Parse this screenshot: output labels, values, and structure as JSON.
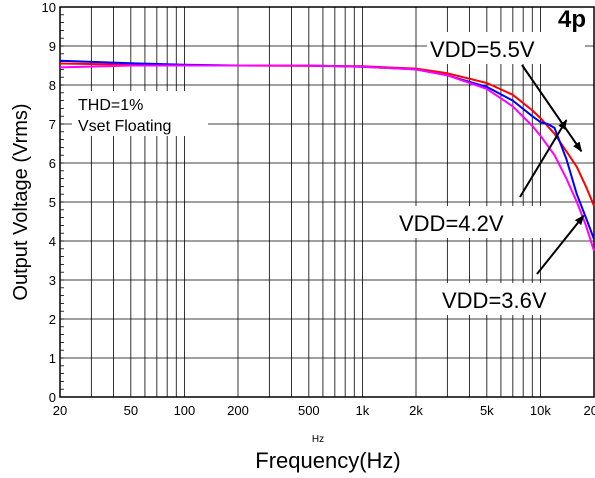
{
  "chart_data": {
    "type": "line",
    "xscale": "log",
    "xlim": [
      20,
      20000
    ],
    "ylim": [
      0,
      10
    ],
    "xticks": [
      20,
      50,
      100,
      200,
      500,
      1000,
      2000,
      5000,
      10000,
      20000
    ],
    "xtick_labels": [
      "20",
      "50",
      "100",
      "200",
      "500",
      "1k",
      "2k",
      "5k",
      "10k",
      "20k"
    ],
    "yticks": [
      0,
      1,
      2,
      3,
      4,
      5,
      6,
      7,
      8,
      9,
      10
    ],
    "ytick_labels": [
      "0",
      "1",
      "2",
      "3",
      "4",
      "5",
      "6",
      "7",
      "8",
      "9",
      "10"
    ],
    "xunit": "Hz",
    "xlabel": "Frequency(Hz)",
    "ylabel": "Output Voltage (Vrms)",
    "grid": true,
    "logo_text": "4p",
    "annotations": [
      "THD=1%",
      "Vset Floating"
    ],
    "series": [
      {
        "name": "VDD=5.5V",
        "color": "#ff0000",
        "x": [
          20,
          50,
          100,
          200,
          500,
          1000,
          2000,
          3000,
          5000,
          7000,
          9000,
          10000,
          12000,
          14000,
          16000,
          18000,
          20000
        ],
        "y": [
          8.55,
          8.52,
          8.5,
          8.5,
          8.49,
          8.48,
          8.42,
          8.3,
          8.05,
          7.75,
          7.35,
          7.15,
          6.75,
          6.3,
          5.9,
          5.4,
          4.9
        ]
      },
      {
        "name": "VDD=4.2V",
        "color": "#0000ff",
        "x": [
          20,
          50,
          100,
          200,
          500,
          1000,
          2000,
          3000,
          5000,
          7000,
          9000,
          10000,
          11000,
          12000,
          14000,
          16000,
          18000,
          20000
        ],
        "y": [
          8.62,
          8.56,
          8.52,
          8.5,
          8.5,
          8.47,
          8.4,
          8.25,
          7.95,
          7.6,
          7.2,
          7.05,
          7.0,
          6.9,
          6.1,
          5.2,
          4.6,
          4.05
        ]
      },
      {
        "name": "VDD=3.6V",
        "color": "#ff00ff",
        "x": [
          20,
          50,
          100,
          200,
          500,
          1000,
          2000,
          3000,
          5000,
          7000,
          9000,
          10000,
          12000,
          14000,
          16000,
          18000,
          20000
        ],
        "y": [
          8.45,
          8.5,
          8.5,
          8.5,
          8.5,
          8.47,
          8.4,
          8.25,
          7.9,
          7.45,
          6.95,
          6.7,
          6.2,
          5.6,
          5.0,
          4.4,
          3.75
        ]
      }
    ],
    "labels": [
      {
        "text": "VDD=5.5V",
        "series": 0,
        "arrow_x": 17000,
        "arrow_y": 6.3
      },
      {
        "text": "VDD=4.2V",
        "series": 1,
        "arrow_x": 14000,
        "arrow_y": 7.1
      },
      {
        "text": "VDD=3.6V",
        "series": 2,
        "arrow_x": 17500,
        "arrow_y": 4.65
      }
    ]
  }
}
